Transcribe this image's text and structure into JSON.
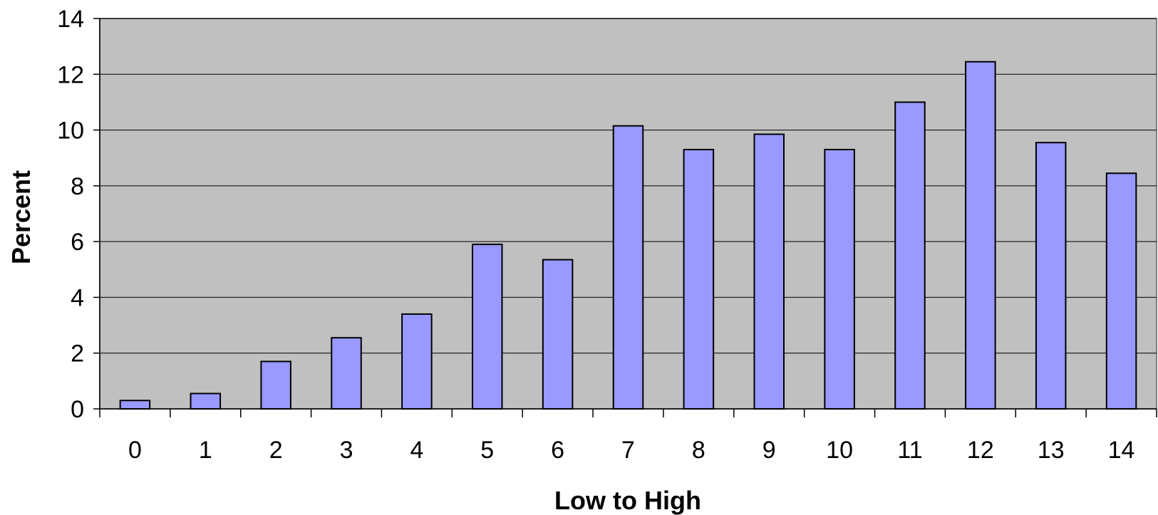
{
  "chart_data": {
    "type": "bar",
    "categories": [
      "0",
      "1",
      "2",
      "3",
      "4",
      "5",
      "6",
      "7",
      "8",
      "9",
      "10",
      "11",
      "12",
      "13",
      "14"
    ],
    "values": [
      0.3,
      0.55,
      1.7,
      2.55,
      3.4,
      5.9,
      5.35,
      10.15,
      9.3,
      9.85,
      9.3,
      11.0,
      12.45,
      9.55,
      8.45
    ],
    "xlabel": "Low to High",
    "ylabel": "Percent",
    "ylim": [
      0,
      14
    ],
    "yticks": [
      "0",
      "2",
      "4",
      "6",
      "8",
      "10",
      "12",
      "14"
    ],
    "grid": true,
    "legend": "none",
    "colors": {
      "bar_fill": "#9999ff",
      "bar_stroke": "#000000",
      "plot_background": "#c0c0c0",
      "gridline": "#000000"
    }
  }
}
